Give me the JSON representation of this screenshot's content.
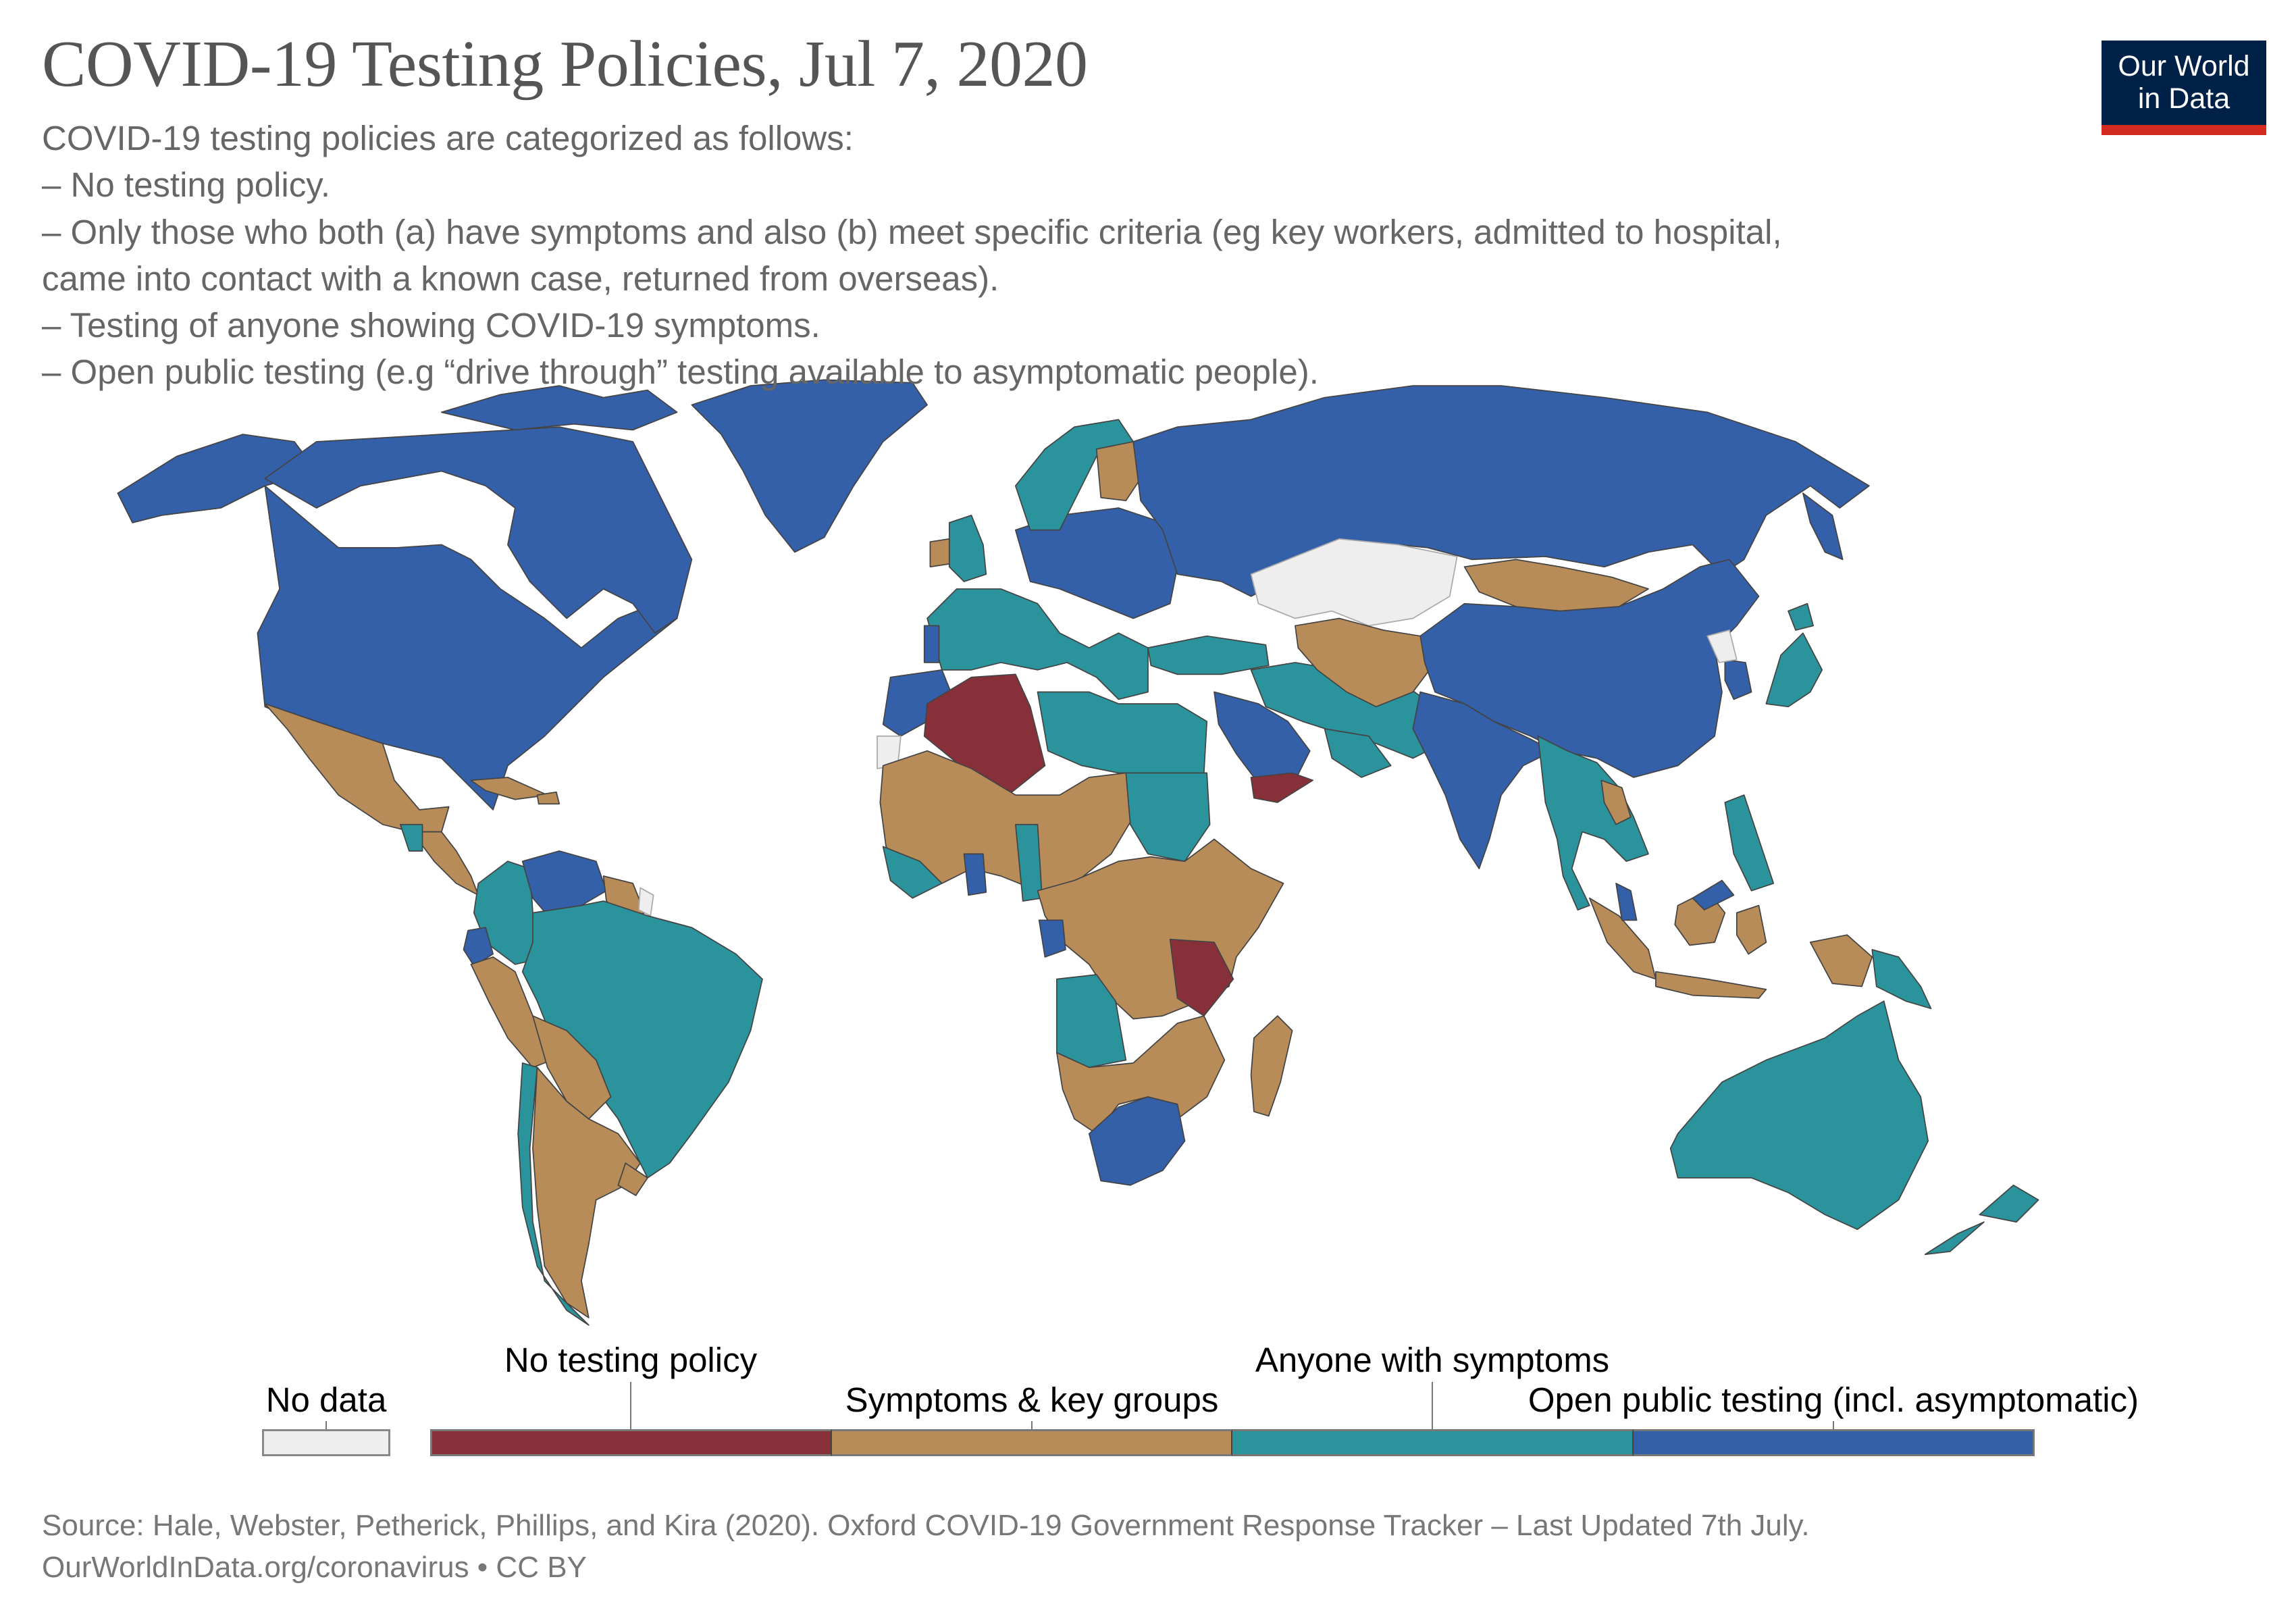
{
  "header": {
    "title": "COVID-19 Testing Policies, Jul 7, 2020",
    "subtitle_lines": [
      "COVID-19 testing policies are categorized as follows:",
      " – No testing policy.",
      " – Only those who both (a) have symptoms and also (b) meet specific criteria (eg key workers, admitted to hospital,",
      "came into contact with a known case, returned from overseas).",
      " – Testing of anyone showing COVID-19 symptoms.",
      " – Open public testing (e.g “drive through” testing available to asymptomatic people)."
    ]
  },
  "logo": {
    "line1": "Our World",
    "line2": "in Data"
  },
  "colors": {
    "no_data": "#EEEEEE",
    "no_testing": "#883039",
    "symptoms_key_groups": "#B88C59",
    "anyone_with_symptoms": "#2A939B",
    "open_public": "#345FA9",
    "border": "#444444"
  },
  "legend": {
    "no_data_label": "No data",
    "categories": [
      {
        "key": "no_testing",
        "label": "No testing policy",
        "value": 0
      },
      {
        "key": "symptoms_key_groups",
        "label": "Symptoms & key groups",
        "value": 1
      },
      {
        "key": "anyone_with_symptoms",
        "label": "Anyone with symptoms",
        "value": 2
      },
      {
        "key": "open_public",
        "label": "Open public testing (incl. asymptomatic)",
        "value": 3
      }
    ]
  },
  "map_data": {
    "regions": [
      {
        "name": "United States",
        "category": "open_public"
      },
      {
        "name": "Canada",
        "category": "open_public"
      },
      {
        "name": "Greenland",
        "category": "open_public"
      },
      {
        "name": "Mexico",
        "category": "symptoms_key_groups"
      },
      {
        "name": "Central America",
        "category": "symptoms_key_groups"
      },
      {
        "name": "Guatemala",
        "category": "anyone_with_symptoms"
      },
      {
        "name": "Cuba",
        "category": "symptoms_key_groups"
      },
      {
        "name": "Colombia",
        "category": "anyone_with_symptoms"
      },
      {
        "name": "Venezuela",
        "category": "open_public"
      },
      {
        "name": "Guyana and Suriname",
        "category": "symptoms_key_groups"
      },
      {
        "name": "French Guiana",
        "category": "no_data"
      },
      {
        "name": "Ecuador",
        "category": "open_public"
      },
      {
        "name": "Peru",
        "category": "symptoms_key_groups"
      },
      {
        "name": "Brazil",
        "category": "anyone_with_symptoms"
      },
      {
        "name": "Bolivia and Paraguay",
        "category": "symptoms_key_groups"
      },
      {
        "name": "Chile",
        "category": "anyone_with_symptoms"
      },
      {
        "name": "Argentina",
        "category": "symptoms_key_groups"
      },
      {
        "name": "Uruguay",
        "category": "symptoms_key_groups"
      },
      {
        "name": "Western Europe",
        "category": "anyone_with_symptoms"
      },
      {
        "name": "Central Europe",
        "category": "open_public"
      },
      {
        "name": "Ireland",
        "category": "symptoms_key_groups"
      },
      {
        "name": "Portugal",
        "category": "open_public"
      },
      {
        "name": "Scandinavia",
        "category": "anyone_with_symptoms"
      },
      {
        "name": "Finland",
        "category": "symptoms_key_groups"
      },
      {
        "name": "Russia",
        "category": "open_public"
      },
      {
        "name": "Kazakhstan",
        "category": "no_data"
      },
      {
        "name": "Turkey",
        "category": "anyone_with_symptoms"
      },
      {
        "name": "Middle East",
        "category": "anyone_with_symptoms"
      },
      {
        "name": "Saudi Arabia",
        "category": "open_public"
      },
      {
        "name": "Yemen",
        "category": "no_testing"
      },
      {
        "name": "Central Asia",
        "category": "symptoms_key_groups"
      },
      {
        "name": "Mongolia",
        "category": "symptoms_key_groups"
      },
      {
        "name": "China",
        "category": "open_public"
      },
      {
        "name": "India",
        "category": "open_public"
      },
      {
        "name": "Southeast Asia",
        "category": "anyone_with_symptoms"
      },
      {
        "name": "Laos",
        "category": "symptoms_key_groups"
      },
      {
        "name": "Japan",
        "category": "anyone_with_symptoms"
      },
      {
        "name": "Korea",
        "category": "open_public"
      },
      {
        "name": "North Korea",
        "category": "no_data"
      },
      {
        "name": "Philippines",
        "category": "anyone_with_symptoms"
      },
      {
        "name": "Indonesia",
        "category": "symptoms_key_groups"
      },
      {
        "name": "Malaysia",
        "category": "open_public"
      },
      {
        "name": "Papua New Guinea",
        "category": "anyone_with_symptoms"
      },
      {
        "name": "Australia",
        "category": "anyone_with_symptoms"
      },
      {
        "name": "New Zealand",
        "category": "anyone_with_symptoms"
      },
      {
        "name": "Morocco",
        "category": "open_public"
      },
      {
        "name": "Western Sahara",
        "category": "no_data"
      },
      {
        "name": "Algeria",
        "category": "no_testing"
      },
      {
        "name": "Libya and Egypt",
        "category": "anyone_with_symptoms"
      },
      {
        "name": "Sahel and West Africa",
        "category": "symptoms_key_groups"
      },
      {
        "name": "West Africa Coast",
        "category": "anyone_with_symptoms"
      },
      {
        "name": "Ghana",
        "category": "open_public"
      },
      {
        "name": "Sudan",
        "category": "anyone_with_symptoms"
      },
      {
        "name": "Central and East Africa",
        "category": "symptoms_key_groups"
      },
      {
        "name": "Gabon",
        "category": "open_public"
      },
      {
        "name": "Tanzania",
        "category": "no_testing"
      },
      {
        "name": "Angola",
        "category": "anyone_with_symptoms"
      },
      {
        "name": "Southern Africa",
        "category": "symptoms_key_groups"
      },
      {
        "name": "South Africa",
        "category": "open_public"
      },
      {
        "name": "Madagascar",
        "category": "symptoms_key_groups"
      }
    ]
  },
  "footer": {
    "source": "Source: Hale, Webster, Petherick, Phillips, and Kira (2020). Oxford COVID-19 Government Response Tracker – Last Updated 7th July.",
    "link": "OurWorldInData.org/coronavirus • CC BY"
  }
}
